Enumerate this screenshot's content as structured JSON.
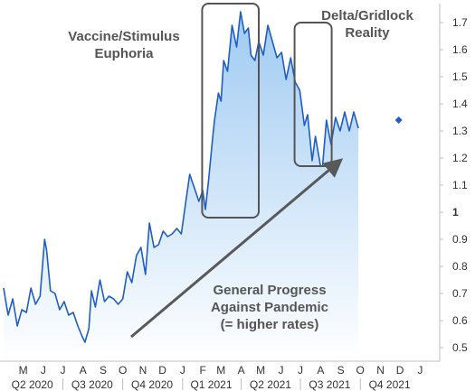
{
  "chart_data": {
    "type": "area",
    "title": "",
    "xlabel": "",
    "ylabel": "",
    "ylim": [
      0.45,
      1.77
    ],
    "y_ticks": [
      "0.5",
      "0.6",
      "0.7",
      "0.8",
      "0.9",
      "1",
      "1.1",
      "1.2",
      "1.3",
      "1.4",
      "1.5",
      "1.6",
      "1.7"
    ],
    "x_start": "2020-04-01",
    "x_end": "2022-01-31",
    "month_labels": [
      {
        "label": "M",
        "date": "2020-05-01"
      },
      {
        "label": "J",
        "date": "2020-06-01"
      },
      {
        "label": "J",
        "date": "2020-07-01"
      },
      {
        "label": "A",
        "date": "2020-08-01"
      },
      {
        "label": "S",
        "date": "2020-09-01"
      },
      {
        "label": "O",
        "date": "2020-10-01"
      },
      {
        "label": "N",
        "date": "2020-11-01"
      },
      {
        "label": "D",
        "date": "2020-12-01"
      },
      {
        "label": "J",
        "date": "2021-01-01"
      },
      {
        "label": "F",
        "date": "2021-02-01"
      },
      {
        "label": "M",
        "date": "2021-03-01"
      },
      {
        "label": "A",
        "date": "2021-04-01"
      },
      {
        "label": "M",
        "date": "2021-05-01"
      },
      {
        "label": "J",
        "date": "2021-06-01"
      },
      {
        "label": "J",
        "date": "2021-07-01"
      },
      {
        "label": "A",
        "date": "2021-08-01"
      },
      {
        "label": "S",
        "date": "2021-09-01"
      },
      {
        "label": "O",
        "date": "2021-10-01"
      },
      {
        "label": "N",
        "date": "2021-11-01"
      },
      {
        "label": "D",
        "date": "2021-12-01"
      },
      {
        "label": "J",
        "date": "2022-01-01"
      }
    ],
    "quarter_labels": [
      {
        "label": "Q2 2020",
        "date": "2020-05-15"
      },
      {
        "label": "Q3 2020",
        "date": "2020-08-15"
      },
      {
        "label": "Q4 2020",
        "date": "2020-11-15"
      },
      {
        "label": "Q1 2021",
        "date": "2021-02-14"
      },
      {
        "label": "Q2 2021",
        "date": "2021-05-16"
      },
      {
        "label": "Q3 2021",
        "date": "2021-08-15"
      },
      {
        "label": "Q4 2021",
        "date": "2021-11-15"
      }
    ],
    "series": [
      {
        "color": "#1f5fbf",
        "fill_top": "#9fcaf2",
        "fill_bottom": "#ffffff",
        "points": [
          [
            "2020-04-01",
            0.72
          ],
          [
            "2020-04-08",
            0.62
          ],
          [
            "2020-04-15",
            0.68
          ],
          [
            "2020-04-22",
            0.58
          ],
          [
            "2020-04-29",
            0.64
          ],
          [
            "2020-05-06",
            0.63
          ],
          [
            "2020-05-13",
            0.72
          ],
          [
            "2020-05-20",
            0.66
          ],
          [
            "2020-05-27",
            0.69
          ],
          [
            "2020-06-03",
            0.9
          ],
          [
            "2020-06-06",
            0.86
          ],
          [
            "2020-06-12",
            0.71
          ],
          [
            "2020-06-19",
            0.7
          ],
          [
            "2020-06-26",
            0.64
          ],
          [
            "2020-07-03",
            0.67
          ],
          [
            "2020-07-10",
            0.62
          ],
          [
            "2020-07-17",
            0.63
          ],
          [
            "2020-07-24",
            0.58
          ],
          [
            "2020-07-31",
            0.54
          ],
          [
            "2020-08-04",
            0.52
          ],
          [
            "2020-08-10",
            0.57
          ],
          [
            "2020-08-14",
            0.71
          ],
          [
            "2020-08-20",
            0.65
          ],
          [
            "2020-08-27",
            0.75
          ],
          [
            "2020-09-03",
            0.67
          ],
          [
            "2020-09-10",
            0.69
          ],
          [
            "2020-09-17",
            0.68
          ],
          [
            "2020-09-24",
            0.66
          ],
          [
            "2020-10-01",
            0.68
          ],
          [
            "2020-10-08",
            0.78
          ],
          [
            "2020-10-15",
            0.74
          ],
          [
            "2020-10-22",
            0.84
          ],
          [
            "2020-10-29",
            0.87
          ],
          [
            "2020-11-05",
            0.77
          ],
          [
            "2020-11-11",
            0.96
          ],
          [
            "2020-11-18",
            0.87
          ],
          [
            "2020-11-25",
            0.88
          ],
          [
            "2020-12-02",
            0.93
          ],
          [
            "2020-12-09",
            0.91
          ],
          [
            "2020-12-16",
            0.92
          ],
          [
            "2020-12-23",
            0.94
          ],
          [
            "2020-12-30",
            0.92
          ],
          [
            "2021-01-06",
            1.04
          ],
          [
            "2021-01-12",
            1.14
          ],
          [
            "2021-01-19",
            1.09
          ],
          [
            "2021-01-26",
            1.04
          ],
          [
            "2021-02-01",
            1.08
          ],
          [
            "2021-02-05",
            1.01
          ],
          [
            "2021-02-10",
            1.12
          ],
          [
            "2021-02-16",
            1.27
          ],
          [
            "2021-02-19",
            1.34
          ],
          [
            "2021-02-25",
            1.44
          ],
          [
            "2021-03-01",
            1.41
          ],
          [
            "2021-03-05",
            1.56
          ],
          [
            "2021-03-11",
            1.52
          ],
          [
            "2021-03-18",
            1.69
          ],
          [
            "2021-03-25",
            1.61
          ],
          [
            "2021-03-31",
            1.74
          ],
          [
            "2021-04-06",
            1.66
          ],
          [
            "2021-04-12",
            1.68
          ],
          [
            "2021-04-16",
            1.58
          ],
          [
            "2021-04-22",
            1.56
          ],
          [
            "2021-04-28",
            1.63
          ],
          [
            "2021-05-05",
            1.58
          ],
          [
            "2021-05-12",
            1.69
          ],
          [
            "2021-05-19",
            1.63
          ],
          [
            "2021-05-26",
            1.57
          ],
          [
            "2021-06-02",
            1.59
          ],
          [
            "2021-06-09",
            1.49
          ],
          [
            "2021-06-16",
            1.57
          ],
          [
            "2021-06-23",
            1.48
          ],
          [
            "2021-06-30",
            1.45
          ],
          [
            "2021-07-07",
            1.32
          ],
          [
            "2021-07-12",
            1.36
          ],
          [
            "2021-07-19",
            1.19
          ],
          [
            "2021-07-24",
            1.28
          ],
          [
            "2021-08-01",
            1.17
          ],
          [
            "2021-08-04",
            1.17
          ],
          [
            "2021-08-10",
            1.34
          ],
          [
            "2021-08-17",
            1.25
          ],
          [
            "2021-08-24",
            1.35
          ],
          [
            "2021-08-31",
            1.3
          ],
          [
            "2021-09-07",
            1.37
          ],
          [
            "2021-09-14",
            1.3
          ],
          [
            "2021-09-21",
            1.37
          ],
          [
            "2021-09-28",
            1.31
          ]
        ]
      }
    ],
    "marker": {
      "date": "2021-11-29",
      "y": 1.34,
      "color": "#1f5fbf"
    },
    "highlight_boxes": [
      {
        "from": "2021-01-31",
        "to": "2021-04-28",
        "ymin": 0.98,
        "ymax": 1.78
      },
      {
        "from": "2021-06-22",
        "to": "2021-08-18",
        "ymin": 1.17,
        "ymax": 1.7
      }
    ],
    "trend_arrow": {
      "from": [
        "2020-10-14",
        0.54
      ],
      "to": [
        "2021-08-31",
        1.19
      ],
      "color": "#595959"
    },
    "annotations": [
      {
        "key": "vaccine",
        "lines": [
          "Vaccine/Stimulus",
          "Euphoria"
        ]
      },
      {
        "key": "delta",
        "lines": [
          "Delta/Gridlock",
          "Reality"
        ]
      },
      {
        "key": "progress",
        "lines": [
          "General Progress",
          "Against Pandemic",
          "(= higher rates)"
        ]
      }
    ]
  }
}
